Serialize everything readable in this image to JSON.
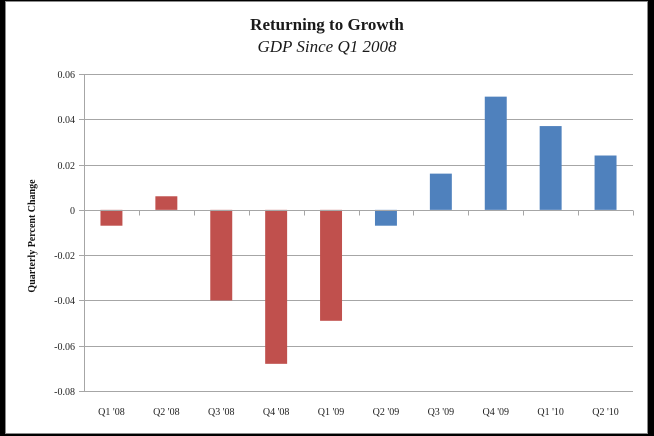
{
  "chart_data": {
    "type": "bar",
    "title": "Returning to Growth",
    "subtitle": "GDP Since Q1 2008",
    "xlabel": "",
    "ylabel": "Quarterly Percent Change",
    "ylim": [
      -0.08,
      0.06
    ],
    "yticks": [
      0.06,
      0.04,
      0.02,
      0,
      -0.02,
      -0.04,
      -0.06,
      -0.08
    ],
    "ytick_labels": [
      "0.06",
      "0.04",
      "0.02",
      "0",
      "-0.02",
      "-0.04",
      "-0.06",
      "-0.08"
    ],
    "grid": true,
    "legend": "none",
    "categories": [
      "Q1 '08",
      "Q2 '08",
      "Q3 '08",
      "Q4 '08",
      "Q1 '09",
      "Q2 '09",
      "Q3 '09",
      "Q4 '09",
      "Q1 '10",
      "Q2 '10"
    ],
    "values": [
      -0.007,
      0.006,
      -0.04,
      -0.068,
      -0.049,
      -0.007,
      0.016,
      0.05,
      0.037,
      0.024
    ],
    "bar_colors": [
      "#C0504D",
      "#C0504D",
      "#C0504D",
      "#C0504D",
      "#C0504D",
      "#4F81BD",
      "#4F81BD",
      "#4F81BD",
      "#4F81BD",
      "#4F81BD"
    ]
  }
}
